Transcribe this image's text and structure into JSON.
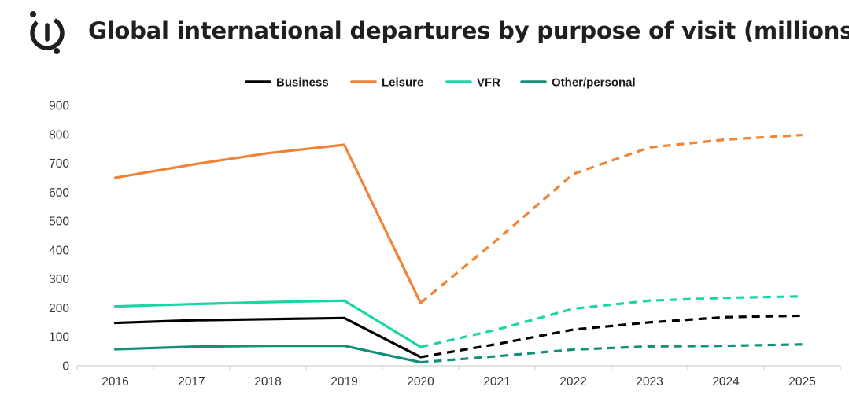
{
  "header": {
    "title": "Global international departures by purpose of visit (millions)",
    "logo_icon": "brand-logo-icon"
  },
  "chart_data": {
    "type": "line",
    "title": "Global international departures by purpose of visit (millions)",
    "xlabel": "",
    "ylabel": "",
    "x": [
      "2016",
      "2017",
      "2018",
      "2019",
      "2020",
      "2021",
      "2022",
      "2023",
      "2024",
      "2025"
    ],
    "ylim": [
      0,
      900
    ],
    "yticks": [
      0,
      100,
      200,
      300,
      400,
      500,
      600,
      700,
      800,
      900
    ],
    "grid": false,
    "legend": "top",
    "forecast_from": "2020",
    "series": [
      {
        "name": "Business",
        "color": "#000000",
        "values": [
          148,
          157,
          161,
          165,
          30,
          75,
          125,
          150,
          168,
          173
        ]
      },
      {
        "name": "Leisure",
        "color": "#f08334",
        "values": [
          650,
          695,
          735,
          764,
          217,
          435,
          663,
          755,
          782,
          798
        ]
      },
      {
        "name": "VFR",
        "color": "#1ad6a6",
        "values": [
          205,
          213,
          220,
          225,
          65,
          125,
          197,
          225,
          235,
          240
        ]
      },
      {
        "name": "Other/personal",
        "color": "#159078",
        "values": [
          57,
          66,
          69,
          69,
          12,
          33,
          56,
          67,
          69,
          74
        ]
      }
    ]
  }
}
